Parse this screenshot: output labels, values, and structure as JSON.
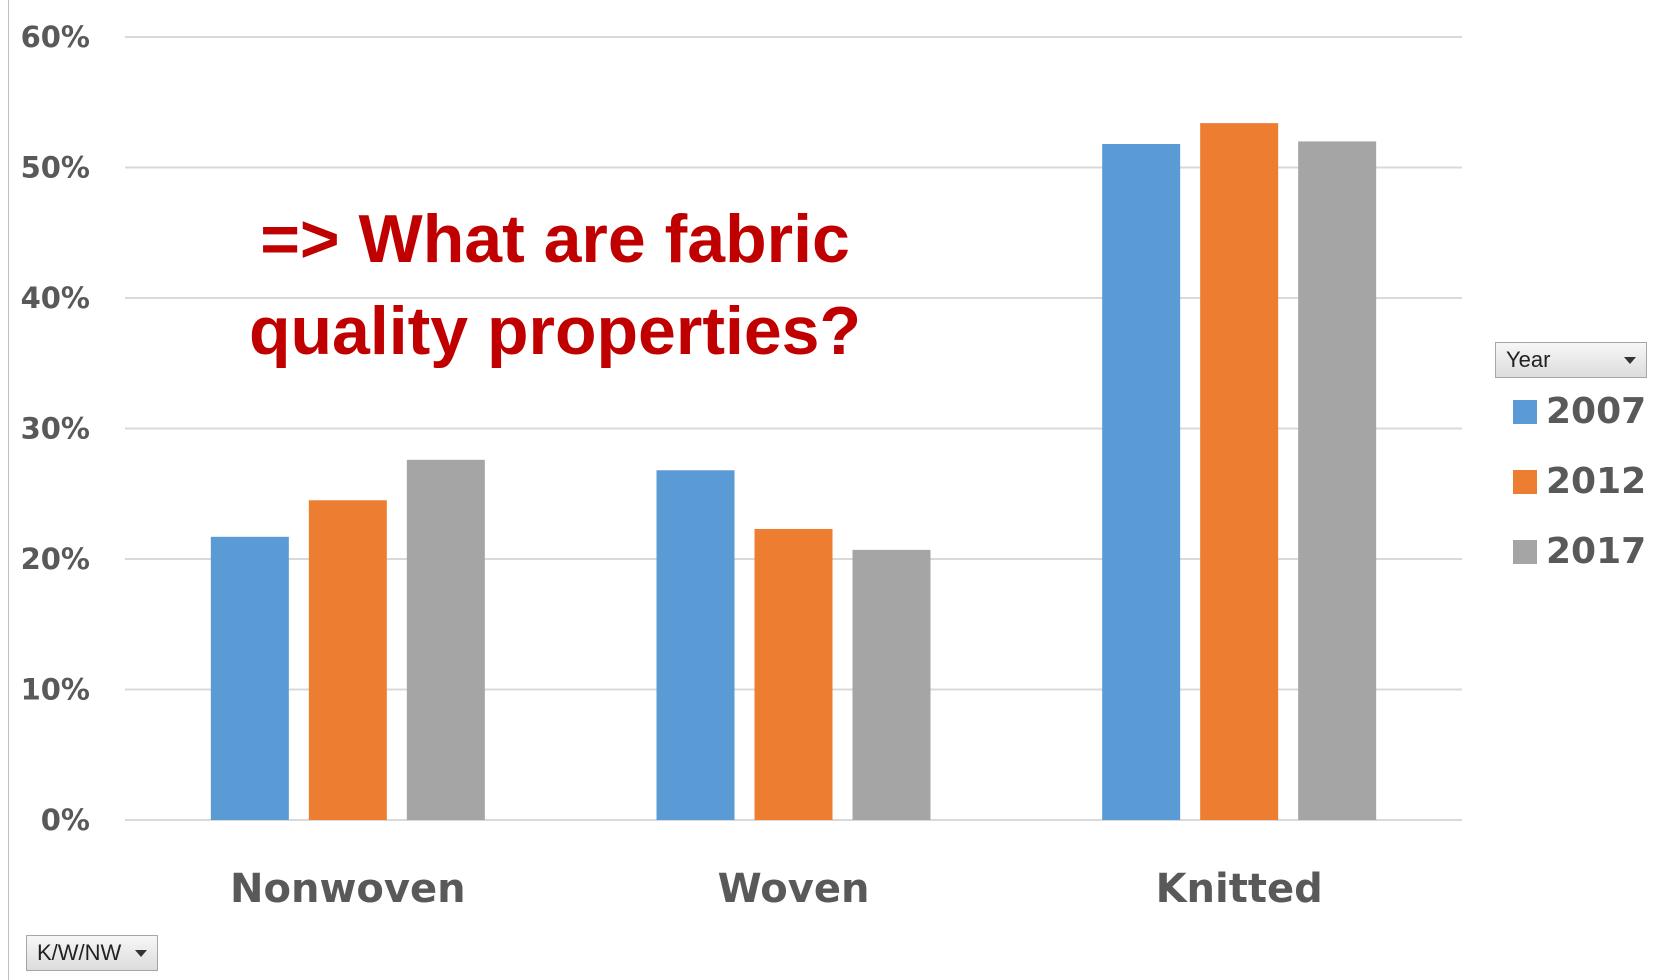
{
  "chart_data": {
    "type": "bar",
    "categories": [
      "Nonwoven",
      "Woven",
      "Knitted"
    ],
    "series": [
      {
        "name": "2007",
        "color": "#5b9bd5",
        "values": [
          21.7,
          26.8,
          51.8
        ]
      },
      {
        "name": "2012",
        "color": "#ed7d31",
        "values": [
          24.5,
          22.3,
          53.4
        ]
      },
      {
        "name": "2017",
        "color": "#a5a5a5",
        "values": [
          27.6,
          20.7,
          52.0
        ]
      }
    ],
    "ylim": [
      0,
      60
    ],
    "yticks": [
      "0%",
      "10%",
      "20%",
      "30%",
      "40%",
      "50%",
      "60%"
    ],
    "ytick_values": [
      0,
      10,
      20,
      30,
      40,
      50,
      60
    ],
    "grid": true,
    "legend_position": "right",
    "annotation_lines": [
      "=> What are fabric",
      "quality properties?"
    ]
  },
  "filters": {
    "legend_field": "Year",
    "axis_field": "K/W/NW"
  },
  "colors": {
    "grid": "#d9d9d9",
    "annotation": "#c00000",
    "text": "#595959"
  }
}
